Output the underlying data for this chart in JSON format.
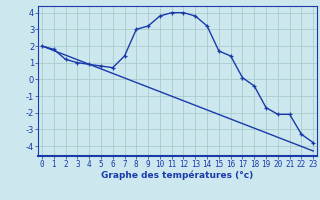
{
  "xlabel": "Graphe des températures (°c)",
  "background_color": "#cce8ee",
  "grid_color": "#aacccc",
  "line_color": "#1a3aaa",
  "axis_label_color": "#1a3aaa",
  "x_hours": [
    0,
    1,
    2,
    3,
    4,
    5,
    6,
    7,
    8,
    9,
    10,
    11,
    12,
    13,
    14,
    15,
    16,
    17,
    18,
    19,
    20,
    21,
    22,
    23
  ],
  "temp_curve": [
    2.0,
    1.8,
    1.2,
    1.0,
    0.9,
    0.8,
    0.7,
    1.4,
    3.0,
    3.2,
    3.8,
    4.0,
    4.0,
    3.8,
    3.2,
    1.7,
    1.4,
    0.1,
    -0.4,
    -1.7,
    -2.1,
    -2.1,
    -3.3,
    -3.8
  ],
  "trend_line_x": [
    0,
    23
  ],
  "trend_line_y": [
    2.0,
    -4.3
  ],
  "ylim": [
    -4.6,
    4.4
  ],
  "yticks": [
    -4,
    -3,
    -2,
    -1,
    0,
    1,
    2,
    3,
    4
  ],
  "xticks": [
    0,
    1,
    2,
    3,
    4,
    5,
    6,
    7,
    8,
    9,
    10,
    11,
    12,
    13,
    14,
    15,
    16,
    17,
    18,
    19,
    20,
    21,
    22,
    23
  ],
  "tick_fontsize": 5.5,
  "xlabel_fontsize": 6.5,
  "marker_size": 3.5,
  "line_width": 1.0
}
